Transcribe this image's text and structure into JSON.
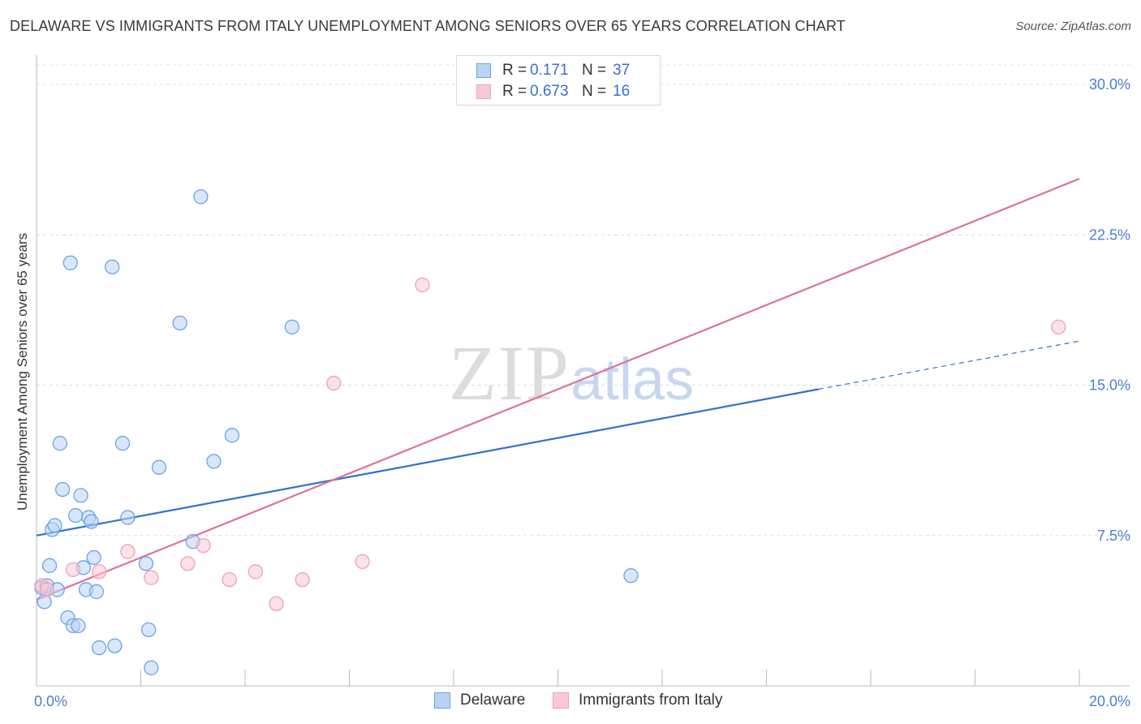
{
  "title": "DELAWARE VS IMMIGRANTS FROM ITALY UNEMPLOYMENT AMONG SENIORS OVER 65 YEARS CORRELATION CHART",
  "source": "Source: ZipAtlas.com",
  "watermark": {
    "zip": "ZIP",
    "atlas": "atlas"
  },
  "legend_top": [
    {
      "r_label": "R =",
      "r_value": "0.171",
      "n_label": "N =",
      "n_value": "37"
    },
    {
      "r_label": "R =",
      "r_value": "0.673",
      "n_label": "N =",
      "n_value": "16"
    }
  ],
  "chart_data": {
    "type": "scatter",
    "title": "DELAWARE VS IMMIGRANTS FROM ITALY UNEMPLOYMENT AMONG SENIORS OVER 65 YEARS CORRELATION CHART",
    "xlabel": "",
    "ylabel": "Unemployment Among Seniors over 65 years",
    "xlim": [
      0,
      20
    ],
    "ylim": [
      0,
      31.3
    ],
    "x_tick_labels": [
      {
        "value": 0,
        "label": "0.0%"
      },
      {
        "value": 20,
        "label": "20.0%"
      }
    ],
    "y_tick_labels": [
      {
        "value": 7.5,
        "label": "7.5%"
      },
      {
        "value": 15.0,
        "label": "15.0%"
      },
      {
        "value": 22.5,
        "label": "22.5%"
      },
      {
        "value": 30.0,
        "label": "30.0%"
      }
    ],
    "grid": true,
    "legend_placement": "bottom",
    "series": [
      {
        "name": "Delaware",
        "color": "#6aa3e8",
        "fill": "#b8d3f5",
        "trend_color": "#2f72d0",
        "points": [
          [
            0.1,
            4.9
          ],
          [
            0.15,
            4.2
          ],
          [
            0.2,
            5.0
          ],
          [
            0.25,
            6.0
          ],
          [
            0.3,
            7.8
          ],
          [
            0.35,
            8.0
          ],
          [
            0.4,
            4.8
          ],
          [
            0.45,
            12.1
          ],
          [
            0.5,
            9.8
          ],
          [
            0.6,
            3.4
          ],
          [
            0.65,
            21.1
          ],
          [
            0.7,
            3.0
          ],
          [
            0.75,
            8.5
          ],
          [
            0.8,
            3.0
          ],
          [
            0.85,
            9.5
          ],
          [
            0.9,
            5.9
          ],
          [
            0.95,
            4.8
          ],
          [
            1.0,
            8.4
          ],
          [
            1.05,
            8.2
          ],
          [
            1.1,
            6.4
          ],
          [
            1.15,
            4.7
          ],
          [
            1.2,
            1.9
          ],
          [
            1.45,
            20.9
          ],
          [
            1.5,
            2.0
          ],
          [
            1.65,
            12.1
          ],
          [
            1.75,
            8.4
          ],
          [
            2.1,
            6.1
          ],
          [
            2.15,
            2.8
          ],
          [
            2.2,
            0.9
          ],
          [
            2.35,
            10.9
          ],
          [
            2.75,
            18.1
          ],
          [
            3.0,
            7.2
          ],
          [
            3.15,
            24.4
          ],
          [
            3.4,
            11.2
          ],
          [
            3.75,
            12.5
          ],
          [
            4.9,
            17.9
          ],
          [
            11.4,
            5.5
          ]
        ],
        "trend": {
          "x": [
            0,
            15.0
          ],
          "y": [
            7.5,
            14.8
          ]
        },
        "trend_dashed": {
          "x": [
            15.0,
            20.0
          ],
          "y": [
            14.8,
            17.2
          ]
        }
      },
      {
        "name": "Immigrants from Italy",
        "color": "#f0a0b8",
        "fill": "#f8c8d6",
        "trend_color": "#e0709a",
        "points": [
          [
            0.1,
            5.0
          ],
          [
            0.2,
            4.8
          ],
          [
            0.7,
            5.8
          ],
          [
            1.2,
            5.7
          ],
          [
            1.75,
            6.7
          ],
          [
            2.2,
            5.4
          ],
          [
            2.9,
            6.1
          ],
          [
            3.2,
            7.0
          ],
          [
            3.7,
            5.3
          ],
          [
            4.2,
            5.7
          ],
          [
            4.6,
            4.1
          ],
          [
            5.1,
            5.3
          ],
          [
            5.7,
            15.1
          ],
          [
            6.25,
            6.2
          ],
          [
            7.4,
            20.0
          ],
          [
            19.6,
            17.9
          ]
        ],
        "trend": {
          "x": [
            0,
            20.0
          ],
          "y": [
            4.3,
            25.3
          ]
        }
      }
    ]
  },
  "legend_bottom": [
    "Delaware",
    "Immigrants from Italy"
  ]
}
